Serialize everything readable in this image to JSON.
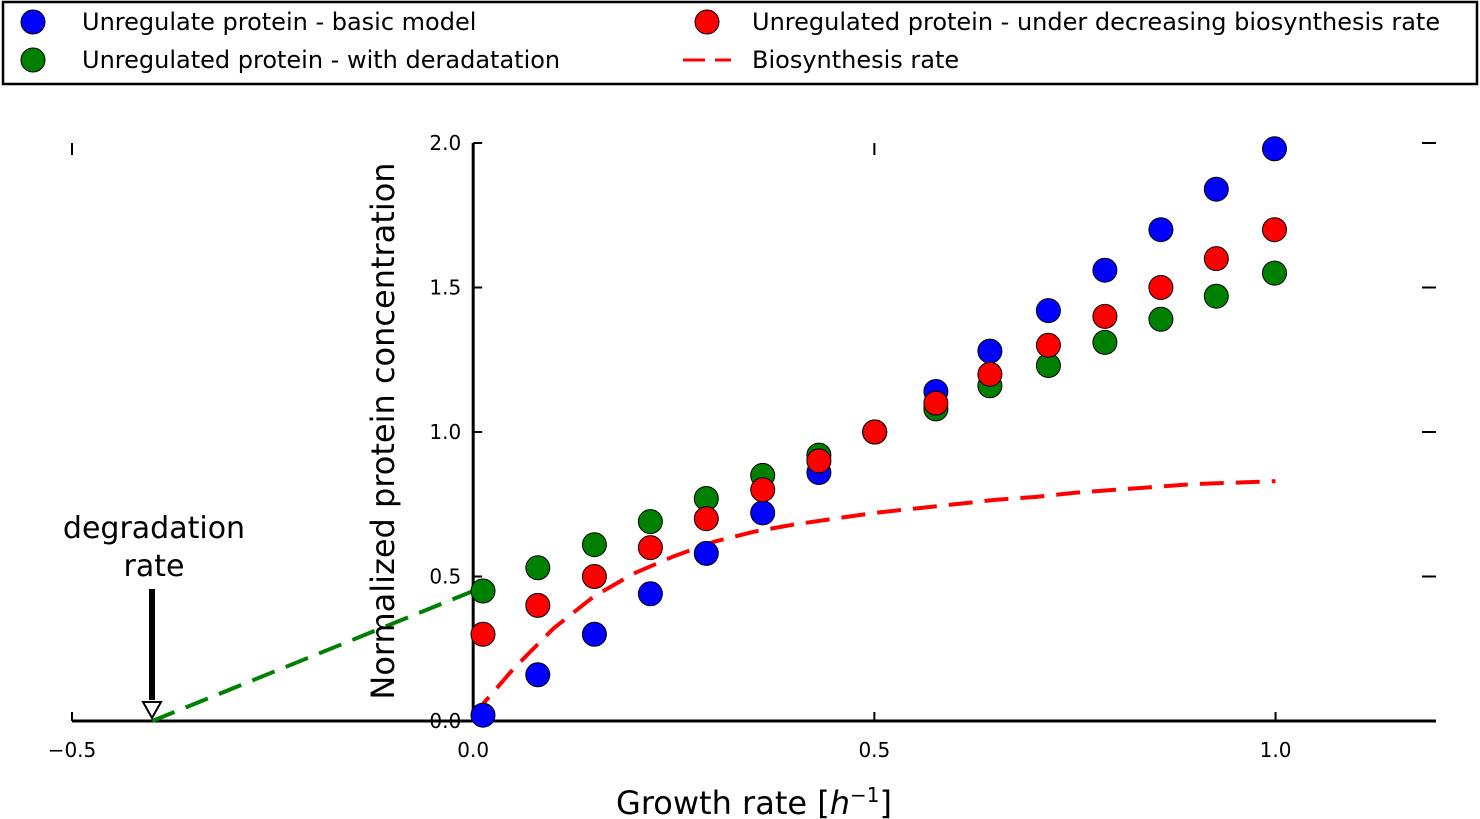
{
  "chart_data": {
    "type": "scatter",
    "title": "",
    "xlabel": "Growth rate",
    "xlabel_unit": "h",
    "xlabel_unit_exp": "−1",
    "ylabel": "Normalized protein concentration",
    "xlim": [
      -0.5,
      1.2
    ],
    "ylim": [
      0.0,
      2.0
    ],
    "xticks": [
      -0.5,
      0.0,
      0.5,
      1.0
    ],
    "xtick_labels": [
      "−0.5",
      "0.0",
      "0.5",
      "1.0"
    ],
    "yticks": [
      0.0,
      0.5,
      1.0,
      1.5,
      2.0
    ],
    "ytick_labels": [
      "0.0",
      "0.5",
      "1.0",
      "1.5",
      "2.0"
    ],
    "grid": false,
    "legend_position": "top",
    "series": [
      {
        "name": "Unregulate protein - basic model",
        "kind": "scatter",
        "color": "#0000ff",
        "x": [
          0.0122,
          0.0806,
          0.1511,
          0.2209,
          0.2905,
          0.3608,
          0.4309,
          0.5004,
          0.5767,
          0.644,
          0.7169,
          0.7874,
          0.8571,
          0.9262,
          0.9987
        ],
        "y": [
          0.02,
          0.16,
          0.3,
          0.44,
          0.58,
          0.72,
          0.86,
          1.0,
          1.14,
          1.28,
          1.42,
          1.56,
          1.7,
          1.84,
          1.98
        ]
      },
      {
        "name": "Unregulated protein - with deradatation",
        "kind": "scatter",
        "color": "#008000",
        "x": [
          0.0122,
          0.0806,
          0.1511,
          0.2209,
          0.2905,
          0.3608,
          0.4309,
          0.5004,
          0.5767,
          0.644,
          0.7169,
          0.7874,
          0.8571,
          0.9262,
          0.9987
        ],
        "y": [
          0.45,
          0.53,
          0.61,
          0.69,
          0.77,
          0.85,
          0.92,
          1.0,
          1.08,
          1.16,
          1.23,
          1.31,
          1.39,
          1.47,
          1.55
        ]
      },
      {
        "name": "Unregulated protein - under decreasing biosynthesis rate",
        "kind": "scatter",
        "color": "#ff0000",
        "x": [
          0.0122,
          0.0806,
          0.1511,
          0.2209,
          0.2905,
          0.3608,
          0.4309,
          0.5004,
          0.5767,
          0.644,
          0.7169,
          0.7874,
          0.8571,
          0.9262,
          0.9987
        ],
        "y": [
          0.3,
          0.4,
          0.5,
          0.6,
          0.7,
          0.8,
          0.9,
          1.0,
          1.1,
          1.2,
          1.3,
          1.4,
          1.5,
          1.6,
          1.7
        ]
      },
      {
        "name": "Biosynthesis rate",
        "kind": "dashed-line",
        "color": "#ff0000",
        "x": [
          0.0,
          0.05,
          0.1,
          0.15,
          0.2,
          0.25,
          0.3,
          0.35,
          0.4,
          0.45,
          0.5,
          0.55,
          0.6,
          0.65,
          0.7,
          0.75,
          0.8,
          0.85,
          0.9,
          0.95,
          1.0
        ],
        "y": [
          0.02,
          0.18,
          0.32,
          0.43,
          0.51,
          0.57,
          0.62,
          0.655,
          0.68,
          0.7,
          0.72,
          0.735,
          0.75,
          0.765,
          0.775,
          0.79,
          0.8,
          0.81,
          0.82,
          0.825,
          0.83
        ]
      },
      {
        "kind": "dashed-line",
        "color": "#008000",
        "x": [
          -0.4,
          0.0
        ],
        "y": [
          0.0,
          0.45
        ]
      }
    ],
    "annotations": [
      {
        "text_lines": [
          "degradation",
          "rate"
        ],
        "arrow_to": {
          "x": -0.4,
          "y": 0.0
        }
      }
    ]
  }
}
